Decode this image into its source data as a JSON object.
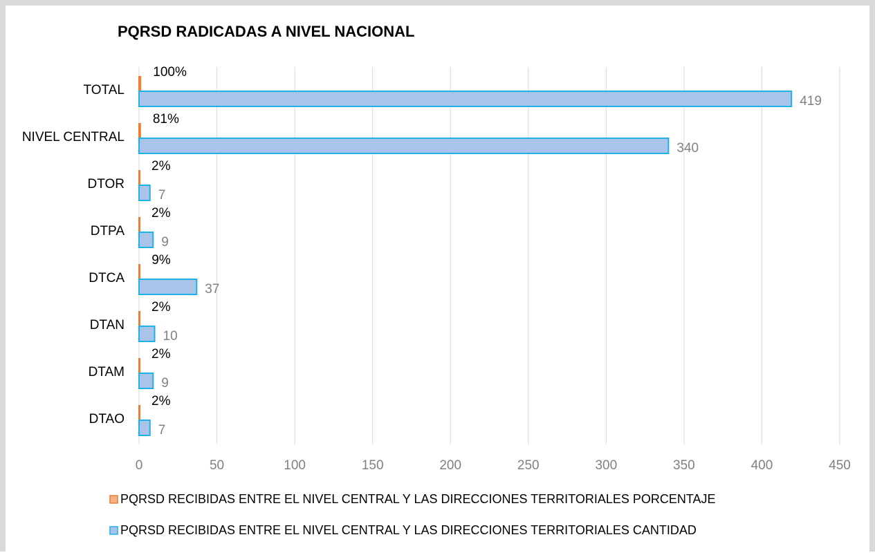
{
  "chart_data": {
    "type": "barh",
    "title": "PQRSD RADICADAS A NIVEL NACIONAL",
    "categories": [
      "TOTAL",
      "NIVEL CENTRAL",
      "DTOR",
      "DTPA",
      "DTCA",
      "DTAN",
      "DTAM",
      "DTAO"
    ],
    "series": [
      {
        "name": "PQRSD RECIBIDAS ENTRE EL NIVEL CENTRAL Y LAS DIRECCIONES TERRITORIALES PORCENTAJE",
        "color": "#f4b183",
        "edgecolor": "#ed7d31",
        "values": [
          1,
          0.81,
          0.02,
          0.02,
          0.09,
          0.02,
          0.02,
          0.02
        ],
        "value_labels": [
          "100%",
          "81%",
          "2%",
          "2%",
          "9%",
          "2%",
          "2%",
          "2%"
        ]
      },
      {
        "name": "PQRSD RECIBIDAS ENTRE EL NIVEL CENTRAL Y LAS DIRECCIONES TERRITORIALES CANTIDAD",
        "color": "#a9c4e8",
        "edgecolor": "#1fb0e8",
        "values": [
          419,
          340,
          7,
          9,
          37,
          10,
          9,
          7
        ]
      }
    ],
    "xlim": [
      0,
      450
    ],
    "xticks": [
      0,
      50,
      100,
      150,
      200,
      250,
      300,
      350,
      400,
      450
    ],
    "grid": true
  }
}
